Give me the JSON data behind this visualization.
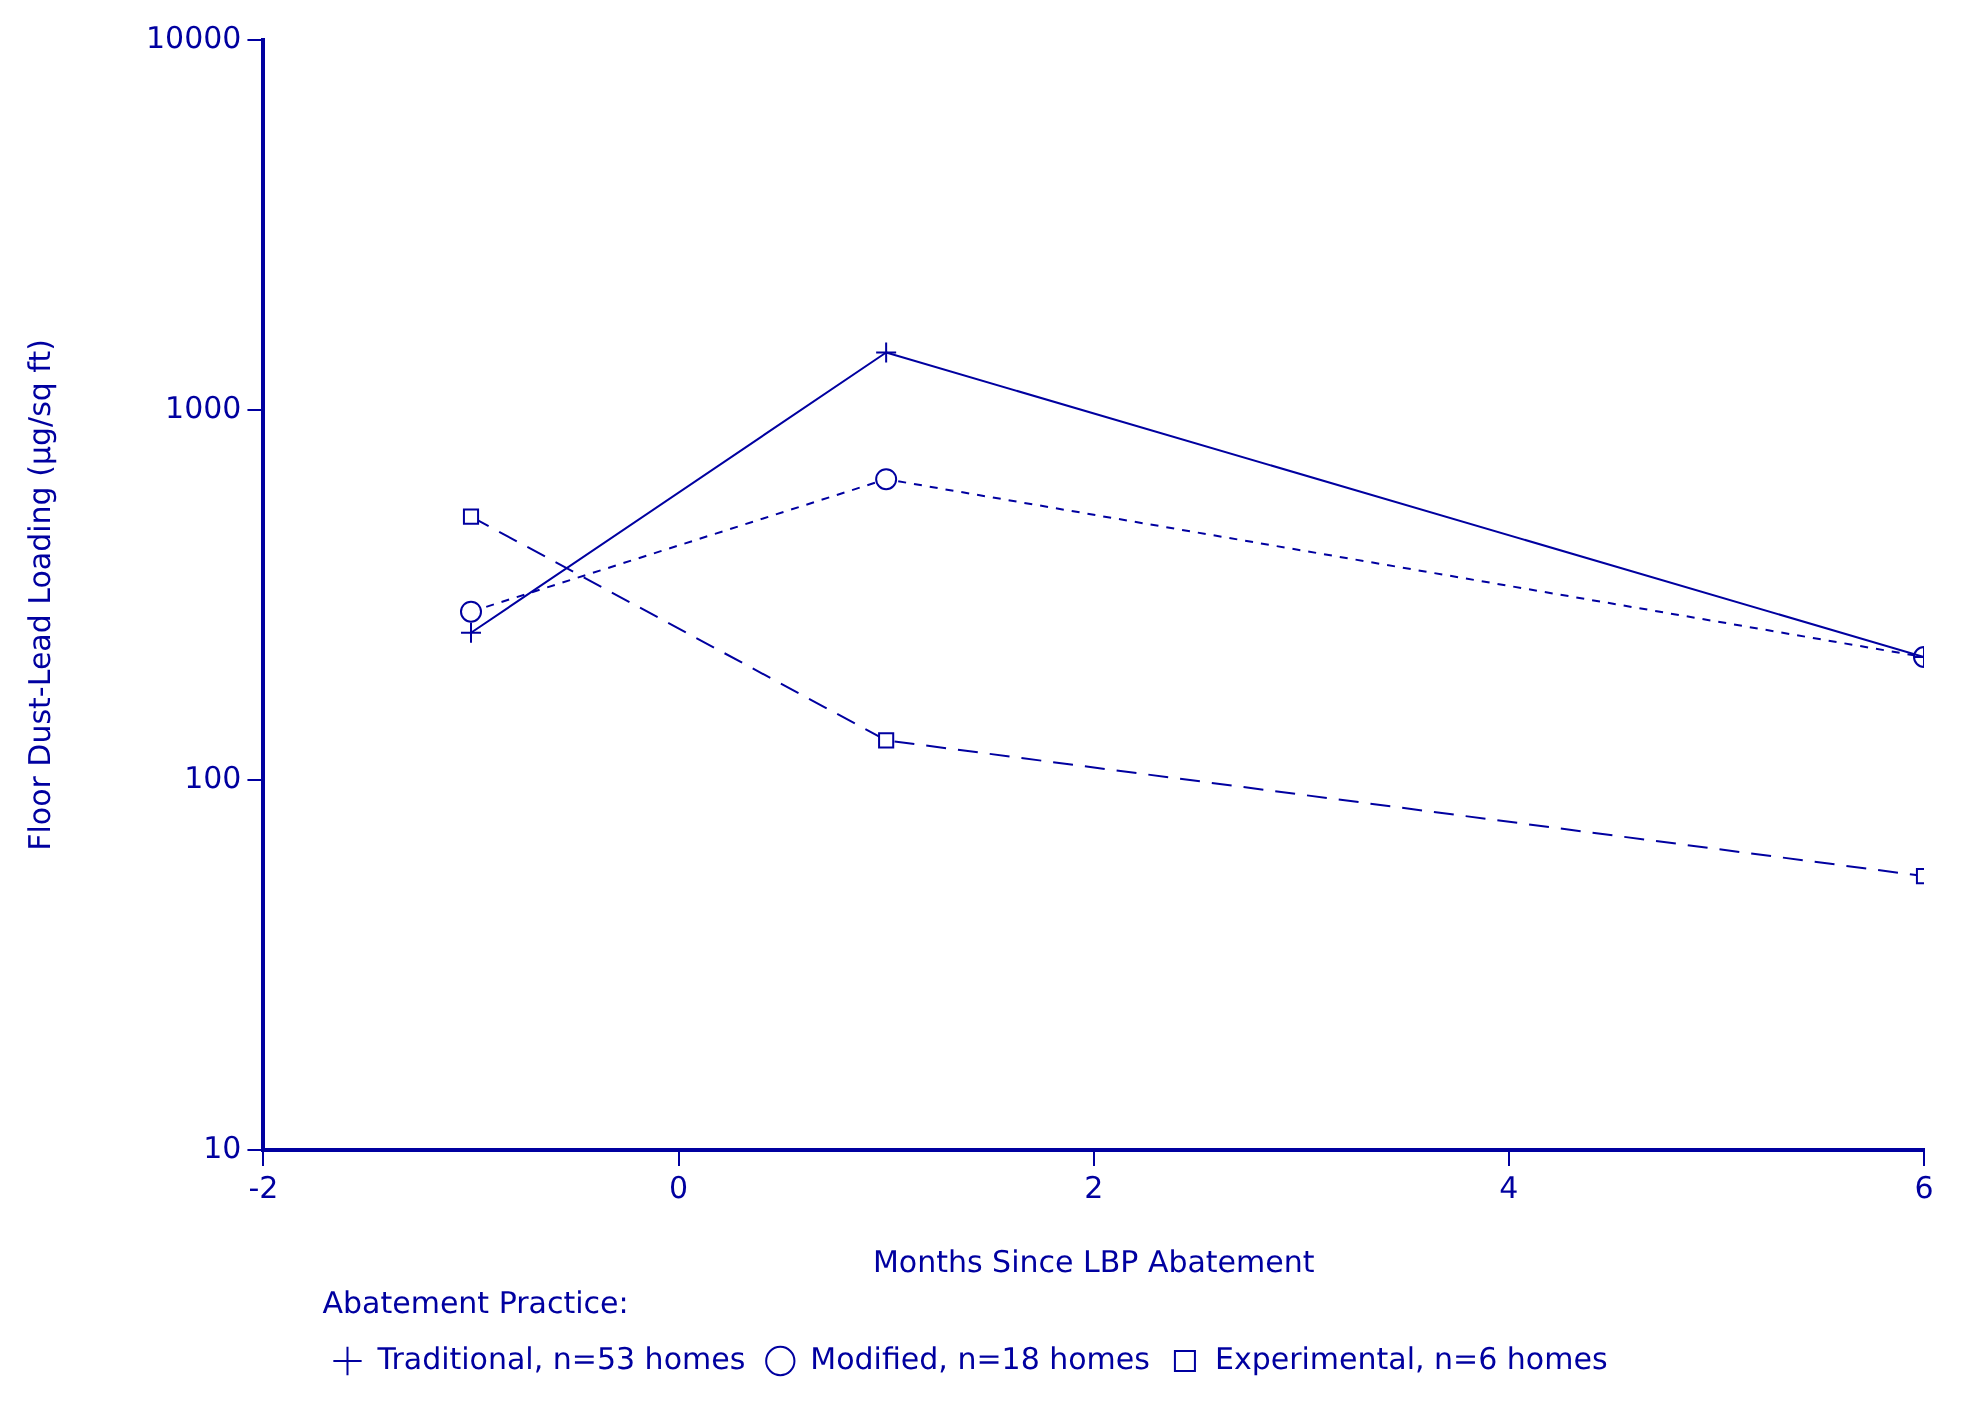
{
  "chart_data": {
    "type": "line",
    "xlabel": "Months Since LBP Abatement",
    "ylabel": "Floor Dust-Lead Loading (µg/sq ft)",
    "legend_title": "Abatement Practice:",
    "legend": "bottom",
    "log": "y",
    "grid": false,
    "xlim": [
      -2,
      6
    ],
    "xticks": [
      -2,
      0,
      2,
      4,
      6
    ],
    "ylim": [
      10,
      10000
    ],
    "yticks": [
      10,
      100,
      1000,
      10000
    ],
    "series": [
      {
        "name": "Traditional, n=53 homes",
        "color": "#0000a0",
        "x": [
          -1,
          1,
          6
        ],
        "values": [
          250,
          1430,
          215
        ],
        "marker": "cross",
        "line_style": "solid"
      },
      {
        "name": "Modified, n=18 homes",
        "color": "#0000a0",
        "x": [
          -1,
          1,
          6
        ],
        "values": [
          285,
          650,
          215
        ],
        "marker": "circle",
        "line_style": "dotted"
      },
      {
        "name": "Experimental, n=6 homes",
        "color": "#0000a0",
        "x": [
          -1,
          1,
          6
        ],
        "values": [
          515,
          128,
          55
        ],
        "marker": "square",
        "line_style": "dashed"
      }
    ]
  }
}
